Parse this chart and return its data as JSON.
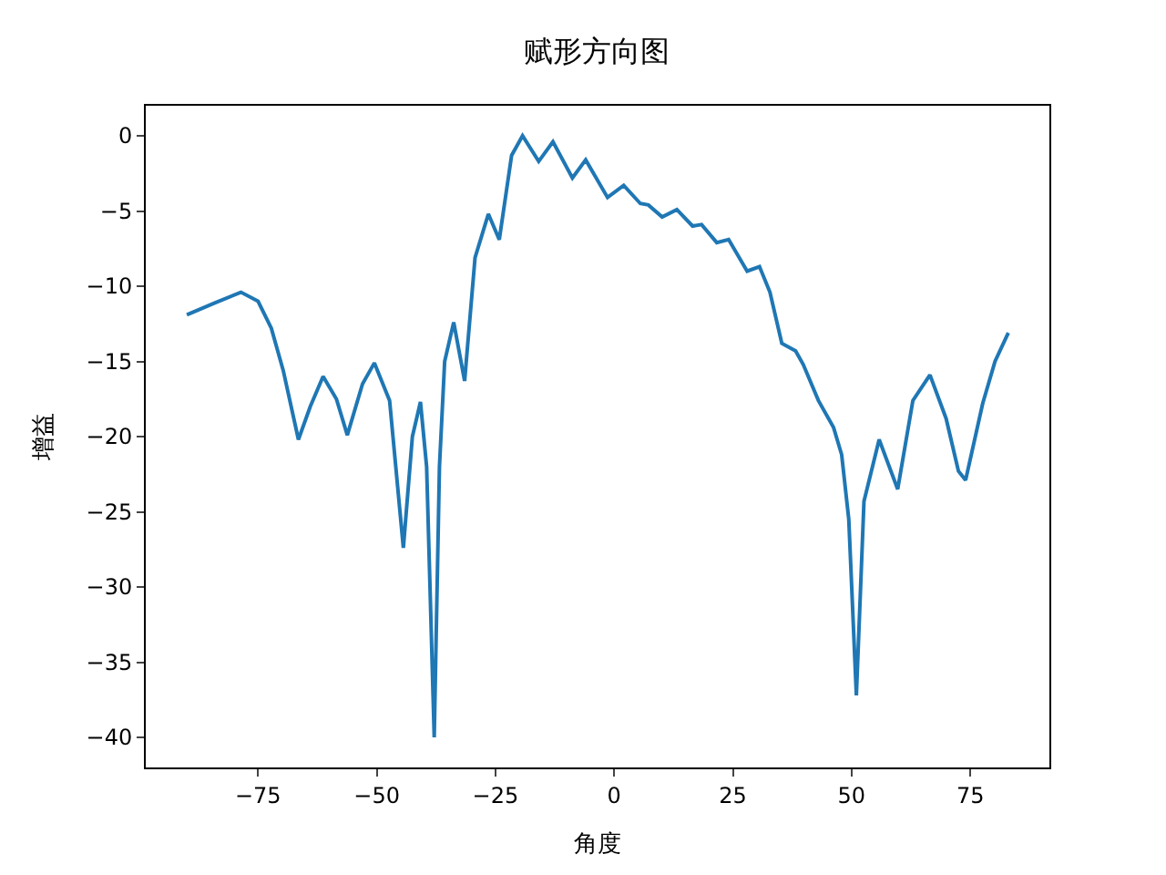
{
  "chart_data": {
    "type": "line",
    "title": "赋形方向图",
    "xlabel": "角度",
    "ylabel": "增益",
    "x": [
      -90,
      -84,
      -78.6,
      -75,
      -72.2,
      -69.7,
      -66.5,
      -64,
      -61.3,
      -58.5,
      -56.2,
      -53,
      -50.5,
      -47.3,
      -44.4,
      -42.5,
      -40.8,
      -39.5,
      -37.9,
      -36.8,
      -35.7,
      -33.8,
      -31.5,
      -29.3,
      -26.5,
      -24.2,
      -21.6,
      -19.3,
      -15.9,
      -12.9,
      -8.8,
      -6.0,
      -1.4,
      2.0,
      5.5,
      7.2,
      10.1,
      13.2,
      16.5,
      18.4,
      21.6,
      24.1,
      28.0,
      30.6,
      32.8,
      35.3,
      38.2,
      39.8,
      43.0,
      46.2,
      47.9,
      49.4,
      51.0,
      52.6,
      55.8,
      59.7,
      62.9,
      66.5,
      69.9,
      72.5,
      74.0,
      77.6,
      80.2,
      83.0
    ],
    "series": [
      {
        "color": "#1f77b4",
        "values": [
          -11.9,
          -11.1,
          -10.4,
          -11.0,
          -12.8,
          -15.6,
          -20.2,
          -18.0,
          -16.0,
          -17.5,
          -19.9,
          -16.5,
          -15.1,
          -17.6,
          -27.4,
          -20.0,
          -17.7,
          -22,
          -40.0,
          -22,
          -15.0,
          -12.4,
          -16.3,
          -8.1,
          -5.2,
          -6.9,
          -1.3,
          0.0,
          -1.7,
          -0.4,
          -2.8,
          -1.6,
          -4.1,
          -3.3,
          -4.5,
          -4.6,
          -5.4,
          -4.9,
          -6.0,
          -5.9,
          -7.1,
          -6.9,
          -9.0,
          -8.7,
          -10.4,
          -13.8,
          -14.3,
          -15.2,
          -17.6,
          -19.4,
          -21.2,
          -25.5,
          -37.2,
          -24.3,
          -20.2,
          -23.5,
          -17.6,
          -15.9,
          -18.8,
          -22.3,
          -22.9,
          -17.8,
          -15.0,
          -13.1
        ]
      }
    ],
    "xlim": [
      -98.65,
      91.65
    ],
    "xticks": [
      -75,
      -50,
      -25,
      0,
      25,
      50,
      75
    ],
    "ylim": [
      -42,
      2
    ],
    "yticks": [
      -40,
      -35,
      -30,
      -25,
      -20,
      -15,
      -10,
      -5,
      0
    ],
    "line_style": "solid",
    "marker": "none"
  }
}
